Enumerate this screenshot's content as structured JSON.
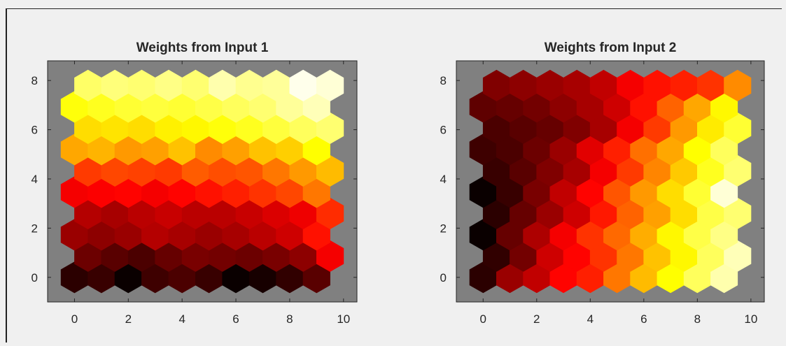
{
  "chart_data": [
    {
      "type": "heatmap",
      "title": "Weights from Input 1",
      "xlim": [
        -1,
        10.5
      ],
      "ylim": [
        -1,
        8.8
      ],
      "xticks": [
        0,
        2,
        4,
        6,
        8,
        10
      ],
      "yticks": [
        0,
        2,
        4,
        6,
        8
      ],
      "grid": "hexagonal 10x10",
      "background_color": "#808080",
      "colormap": "hot",
      "values": [
        [
          0.05,
          0.07,
          0.0,
          0.08,
          0.1,
          0.07,
          0.0,
          0.02,
          0.06,
          0.12
        ],
        [
          0.15,
          0.12,
          0.1,
          0.14,
          0.17,
          0.16,
          0.15,
          0.17,
          0.2,
          0.36
        ],
        [
          0.22,
          0.2,
          0.22,
          0.26,
          0.24,
          0.22,
          0.24,
          0.27,
          0.3,
          0.4
        ],
        [
          0.26,
          0.24,
          0.27,
          0.29,
          0.27,
          0.27,
          0.29,
          0.32,
          0.35,
          0.44
        ],
        [
          0.36,
          0.37,
          0.38,
          0.36,
          0.38,
          0.4,
          0.42,
          0.45,
          0.48,
          0.55
        ],
        [
          0.46,
          0.48,
          0.47,
          0.46,
          0.51,
          0.49,
          0.5,
          0.55,
          0.6,
          0.65
        ],
        [
          0.62,
          0.64,
          0.6,
          0.61,
          0.66,
          0.58,
          0.61,
          0.66,
          0.68,
          0.75
        ],
        [
          0.7,
          0.71,
          0.7,
          0.73,
          0.74,
          0.76,
          0.78,
          0.81,
          0.84,
          0.86
        ],
        [
          0.76,
          0.78,
          0.8,
          0.81,
          0.8,
          0.82,
          0.84,
          0.86,
          0.9,
          0.93
        ],
        [
          0.85,
          0.87,
          0.86,
          0.88,
          0.86,
          0.92,
          0.89,
          0.9,
          0.98,
          0.96
        ]
      ]
    },
    {
      "type": "heatmap",
      "title": "Weights from Input 2",
      "xlim": [
        -1,
        10.5
      ],
      "ylim": [
        -1,
        8.8
      ],
      "xticks": [
        0,
        2,
        4,
        6,
        8,
        10
      ],
      "yticks": [
        0,
        2,
        4,
        6,
        8
      ],
      "grid": "hexagonal 10x10",
      "background_color": "#808080",
      "colormap": "hot",
      "values": [
        [
          0.05,
          0.22,
          0.28,
          0.38,
          0.42,
          0.55,
          0.65,
          0.75,
          0.84,
          0.92
        ],
        [
          0.06,
          0.16,
          0.3,
          0.38,
          0.45,
          0.55,
          0.66,
          0.74,
          0.84,
          0.93
        ],
        [
          0.0,
          0.14,
          0.25,
          0.36,
          0.45,
          0.53,
          0.63,
          0.74,
          0.82,
          0.88
        ],
        [
          0.05,
          0.14,
          0.22,
          0.3,
          0.41,
          0.52,
          0.61,
          0.7,
          0.82,
          0.86
        ],
        [
          0.0,
          0.07,
          0.17,
          0.28,
          0.38,
          0.5,
          0.6,
          0.7,
          0.8,
          0.96
        ],
        [
          0.07,
          0.12,
          0.18,
          0.24,
          0.36,
          0.46,
          0.57,
          0.67,
          0.78,
          0.86
        ],
        [
          0.08,
          0.1,
          0.15,
          0.22,
          0.33,
          0.42,
          0.54,
          0.62,
          0.75,
          0.84
        ],
        [
          0.1,
          0.12,
          0.14,
          0.18,
          0.24,
          0.36,
          0.46,
          0.6,
          0.72,
          0.8
        ],
        [
          0.13,
          0.14,
          0.16,
          0.2,
          0.24,
          0.3,
          0.4,
          0.52,
          0.62,
          0.74
        ],
        [
          0.18,
          0.2,
          0.22,
          0.24,
          0.28,
          0.36,
          0.4,
          0.42,
          0.45,
          0.58
        ]
      ]
    }
  ]
}
